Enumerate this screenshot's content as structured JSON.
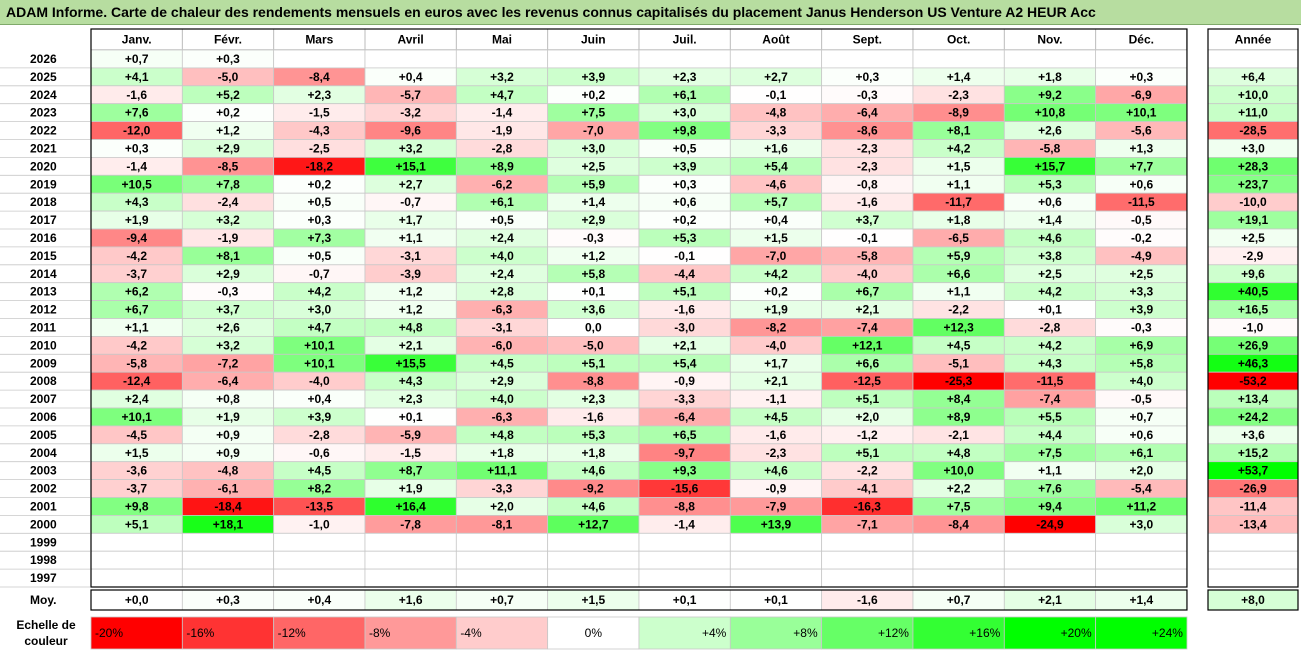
{
  "title": "ADAM Informe. Carte de chaleur des rendements mensuels en euros avec les revenus connus capitalisés du placement Janus Henderson US Venture A2 HEUR Acc",
  "chart_data": {
    "type": "heatmap",
    "months": [
      "Janv.",
      "Févr.",
      "Mars",
      "Avril",
      "Mai",
      "Juin",
      "Juil.",
      "Août",
      "Sept.",
      "Oct.",
      "Nov.",
      "Déc."
    ],
    "year_header": "Année",
    "rows": [
      {
        "year": "2026",
        "m": [
          "+0,7",
          "+0,3",
          null,
          null,
          null,
          null,
          null,
          null,
          null,
          null,
          null,
          null
        ],
        "y": null
      },
      {
        "year": "2025",
        "m": [
          "+4,1",
          "-5,0",
          "-8,4",
          "+0,4",
          "+3,2",
          "+3,9",
          "+2,3",
          "+2,7",
          "+0,3",
          "+1,4",
          "+1,8",
          "+0,3"
        ],
        "y": "+6,4"
      },
      {
        "year": "2024",
        "m": [
          "-1,6",
          "+5,2",
          "+2,3",
          "-5,7",
          "+4,7",
          "+0,2",
          "+6,1",
          "-0,1",
          "-0,3",
          "-2,3",
          "+9,2",
          "-6,9"
        ],
        "y": "+10,0"
      },
      {
        "year": "2023",
        "m": [
          "+7,6",
          "+0,2",
          "-1,5",
          "-3,2",
          "-1,4",
          "+7,5",
          "+3,0",
          "-4,8",
          "-6,4",
          "-8,9",
          "+10,8",
          "+10,1"
        ],
        "y": "+11,0"
      },
      {
        "year": "2022",
        "m": [
          "-12,0",
          "+1,2",
          "-4,3",
          "-9,6",
          "-1,9",
          "-7,0",
          "+9,8",
          "-3,3",
          "-8,6",
          "+8,1",
          "+2,6",
          "-5,6"
        ],
        "y": "-28,5"
      },
      {
        "year": "2021",
        "m": [
          "+0,3",
          "+2,9",
          "-2,5",
          "+3,2",
          "-2,8",
          "+3,0",
          "+0,5",
          "+1,6",
          "-2,3",
          "+4,2",
          "-5,8",
          "+1,3"
        ],
        "y": "+3,0"
      },
      {
        "year": "2020",
        "m": [
          "-1,4",
          "-8,5",
          "-18,2",
          "+15,1",
          "+8,9",
          "+2,5",
          "+3,9",
          "+5,4",
          "-2,3",
          "+1,5",
          "+15,7",
          "+7,7"
        ],
        "y": "+28,3"
      },
      {
        "year": "2019",
        "m": [
          "+10,5",
          "+7,8",
          "+0,2",
          "+2,7",
          "-6,2",
          "+5,9",
          "+0,3",
          "-4,6",
          "-0,8",
          "+1,1",
          "+5,3",
          "+0,6"
        ],
        "y": "+23,7"
      },
      {
        "year": "2018",
        "m": [
          "+4,3",
          "-2,4",
          "+0,5",
          "-0,7",
          "+6,1",
          "+1,4",
          "+0,6",
          "+5,7",
          "-1,6",
          "-11,7",
          "+0,6",
          "-11,5"
        ],
        "y": "-10,0"
      },
      {
        "year": "2017",
        "m": [
          "+1,9",
          "+3,2",
          "+0,3",
          "+1,7",
          "+0,5",
          "+2,9",
          "+0,2",
          "+0,4",
          "+3,7",
          "+1,8",
          "+1,4",
          "-0,5"
        ],
        "y": "+19,1"
      },
      {
        "year": "2016",
        "m": [
          "-9,4",
          "-1,9",
          "+7,3",
          "+1,1",
          "+2,4",
          "-0,3",
          "+5,3",
          "+1,5",
          "-0,1",
          "-6,5",
          "+4,6",
          "-0,2"
        ],
        "y": "+2,5"
      },
      {
        "year": "2015",
        "m": [
          "-4,2",
          "+8,1",
          "+0,5",
          "-3,1",
          "+4,0",
          "+1,2",
          "-0,1",
          "-7,0",
          "-5,8",
          "+5,9",
          "+3,8",
          "-4,9"
        ],
        "y": "-2,9"
      },
      {
        "year": "2014",
        "m": [
          "-3,7",
          "+2,9",
          "-0,7",
          "-3,9",
          "+2,4",
          "+5,8",
          "-4,4",
          "+4,2",
          "-4,0",
          "+6,6",
          "+2,5",
          "+2,5"
        ],
        "y": "+9,6"
      },
      {
        "year": "2013",
        "m": [
          "+6,2",
          "-0,3",
          "+4,2",
          "+1,2",
          "+2,8",
          "+0,1",
          "+5,1",
          "+0,2",
          "+6,7",
          "+1,1",
          "+4,2",
          "+3,3"
        ],
        "y": "+40,5"
      },
      {
        "year": "2012",
        "m": [
          "+6,7",
          "+3,7",
          "+3,0",
          "+1,2",
          "-6,3",
          "+3,6",
          "-1,6",
          "+1,9",
          "+2,1",
          "-2,2",
          "+0,1",
          "+3,9"
        ],
        "y": "+16,5"
      },
      {
        "year": "2011",
        "m": [
          "+1,1",
          "+2,6",
          "+4,7",
          "+4,8",
          "-3,1",
          "0,0",
          "-3,0",
          "-8,2",
          "-7,4",
          "+12,3",
          "-2,8",
          "-0,3"
        ],
        "y": "-1,0"
      },
      {
        "year": "2010",
        "m": [
          "-4,2",
          "+3,2",
          "+10,1",
          "+2,1",
          "-6,0",
          "-5,0",
          "+2,1",
          "-4,0",
          "+12,1",
          "+4,5",
          "+4,2",
          "+6,9"
        ],
        "y": "+26,9"
      },
      {
        "year": "2009",
        "m": [
          "-5,8",
          "-7,2",
          "+10,1",
          "+15,5",
          "+4,5",
          "+5,1",
          "+5,4",
          "+1,7",
          "+6,6",
          "-5,1",
          "+4,3",
          "+5,8"
        ],
        "y": "+46,3"
      },
      {
        "year": "2008",
        "m": [
          "-12,4",
          "-6,4",
          "-4,0",
          "+4,3",
          "+2,9",
          "-8,8",
          "-0,9",
          "+2,1",
          "-12,5",
          "-25,3",
          "-11,5",
          "+4,0"
        ],
        "y": "-53,2"
      },
      {
        "year": "2007",
        "m": [
          "+2,4",
          "+0,8",
          "+0,4",
          "+2,3",
          "+4,0",
          "+2,3",
          "-3,3",
          "-1,1",
          "+5,1",
          "+8,4",
          "-7,4",
          "-0,5"
        ],
        "y": "+13,4"
      },
      {
        "year": "2006",
        "m": [
          "+10,1",
          "+1,9",
          "+3,9",
          "+0,1",
          "-6,3",
          "-1,6",
          "-6,4",
          "+4,5",
          "+2,0",
          "+8,9",
          "+5,5",
          "+0,7"
        ],
        "y": "+24,2"
      },
      {
        "year": "2005",
        "m": [
          "-4,5",
          "+0,9",
          "-2,8",
          "-5,9",
          "+4,8",
          "+5,3",
          "+6,5",
          "-1,6",
          "-1,2",
          "-2,1",
          "+4,4",
          "+0,6"
        ],
        "y": "+3,6"
      },
      {
        "year": "2004",
        "m": [
          "+1,5",
          "+0,9",
          "-0,6",
          "-1,5",
          "+1,8",
          "+1,8",
          "-9,7",
          "-2,3",
          "+5,1",
          "+4,8",
          "+7,5",
          "+6,1"
        ],
        "y": "+15,2"
      },
      {
        "year": "2003",
        "m": [
          "-3,6",
          "-4,8",
          "+4,5",
          "+8,7",
          "+11,1",
          "+4,6",
          "+9,3",
          "+4,6",
          "-2,2",
          "+10,0",
          "+1,1",
          "+2,0"
        ],
        "y": "+53,7"
      },
      {
        "year": "2002",
        "m": [
          "-3,7",
          "-6,1",
          "+8,2",
          "+1,9",
          "-3,3",
          "-9,2",
          "-15,6",
          "-0,9",
          "-4,1",
          "+2,2",
          "+7,6",
          "-5,4"
        ],
        "y": "-26,9"
      },
      {
        "year": "2001",
        "m": [
          "+9,8",
          "-18,4",
          "-13,5",
          "+16,4",
          "+2,0",
          "+4,6",
          "-8,8",
          "-7,9",
          "-16,3",
          "+7,5",
          "+9,4",
          "+11,2"
        ],
        "y": "-11,4"
      },
      {
        "year": "2000",
        "m": [
          "+5,1",
          "+18,1",
          "-1,0",
          "-7,8",
          "-8,1",
          "+12,7",
          "-1,4",
          "+13,9",
          "-7,1",
          "-8,4",
          "-24,9",
          "+3,0"
        ],
        "y": "-13,4"
      },
      {
        "year": "1999",
        "m": [
          null,
          null,
          null,
          null,
          null,
          null,
          null,
          null,
          null,
          null,
          null,
          null
        ],
        "y": null
      },
      {
        "year": "1998",
        "m": [
          null,
          null,
          null,
          null,
          null,
          null,
          null,
          null,
          null,
          null,
          null,
          null
        ],
        "y": null
      },
      {
        "year": "1997",
        "m": [
          null,
          null,
          null,
          null,
          null,
          null,
          null,
          null,
          null,
          null,
          null,
          null
        ],
        "y": null
      }
    ],
    "average": {
      "label": "Moy.",
      "m": [
        "+0,0",
        "+0,3",
        "+0,4",
        "+1,6",
        "+0,7",
        "+1,5",
        "+0,1",
        "+0,1",
        "-1,6",
        "+0,7",
        "+2,1",
        "+1,4"
      ],
      "y": "+8,0"
    },
    "scale": {
      "label_line1": "Echelle de",
      "label_line2": "couleur",
      "steps": [
        {
          "label": "-20%",
          "value": -20
        },
        {
          "label": "-16%",
          "value": -16
        },
        {
          "label": "-12%",
          "value": -12
        },
        {
          "label": "-8%",
          "value": -8
        },
        {
          "label": "-4%",
          "value": -4
        },
        {
          "label": "0%",
          "value": 0
        },
        {
          "label": "+4%",
          "value": 4
        },
        {
          "label": "+8%",
          "value": 8
        },
        {
          "label": "+12%",
          "value": 12
        },
        {
          "label": "+16%",
          "value": 16
        },
        {
          "label": "+20%",
          "value": 20
        },
        {
          "label": "+24%",
          "value": 24
        }
      ]
    },
    "colors": {
      "negative_max": "#ff0000",
      "neutral": "#ffffff",
      "positive_max": "#00ff00",
      "title_bg": "#b7dda0"
    }
  }
}
